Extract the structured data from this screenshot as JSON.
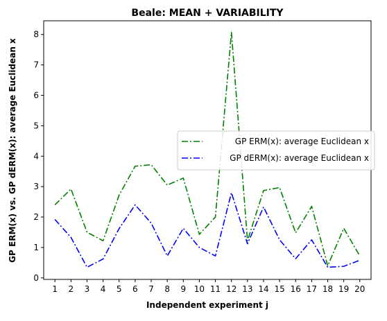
{
  "chart_data": {
    "type": "line",
    "title": "Beale: MEAN + VARIABILITY",
    "xlabel": "Independent experiment j",
    "ylabel": "GP ERM(x) vs. GP dERM(x): average Euclidean x",
    "x": [
      1,
      2,
      3,
      4,
      5,
      6,
      7,
      8,
      9,
      10,
      11,
      12,
      13,
      14,
      15,
      16,
      17,
      18,
      19,
      20
    ],
    "xlim": [
      0.3,
      20.7
    ],
    "ylim": [
      -0.05,
      8.45
    ],
    "yticks": [
      0,
      1,
      2,
      3,
      4,
      5,
      6,
      7,
      8
    ],
    "grid": false,
    "legend_position": "center-right",
    "series": [
      {
        "name": "GP ERM(x): average Euclidean x",
        "color": "#008000",
        "dash": "dashdot",
        "values": [
          2.4,
          2.92,
          1.5,
          1.22,
          2.72,
          3.67,
          3.72,
          3.05,
          3.28,
          1.43,
          2.0,
          8.07,
          1.22,
          2.87,
          2.97,
          1.48,
          2.35,
          0.4,
          1.63,
          0.72
        ]
      },
      {
        "name": "GP dERM(x): average Euclidean x",
        "color": "#0000ff",
        "dash": "dashdot",
        "values": [
          1.92,
          1.33,
          0.35,
          0.62,
          1.62,
          2.4,
          1.8,
          0.72,
          1.63,
          1.0,
          0.72,
          2.8,
          1.12,
          2.33,
          1.25,
          0.63,
          1.25,
          0.35,
          0.38,
          0.58
        ]
      }
    ]
  }
}
